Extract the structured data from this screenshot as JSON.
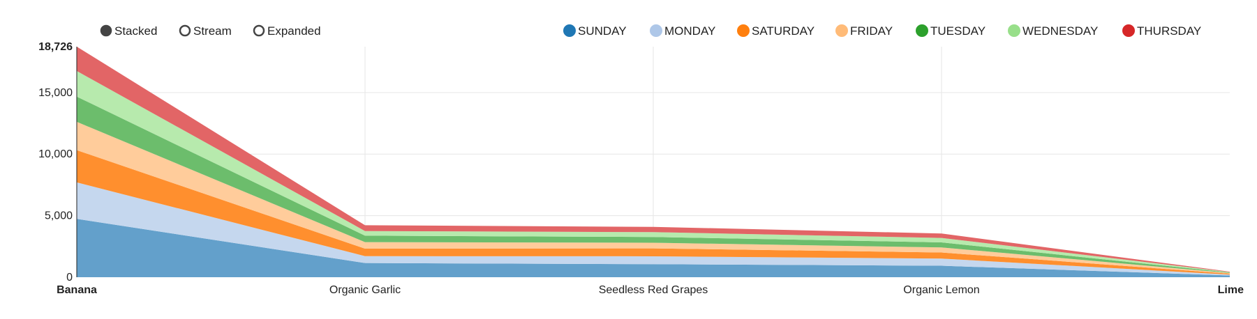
{
  "controls": {
    "options": [
      {
        "label": "Stacked",
        "selected": true
      },
      {
        "label": "Stream",
        "selected": false
      },
      {
        "label": "Expanded",
        "selected": false
      }
    ]
  },
  "chart_data": {
    "type": "area",
    "stacked": true,
    "categories": [
      "Banana",
      "Organic Garlic",
      "Seedless Red Grapes",
      "Organic Lemon",
      "Lime"
    ],
    "x_tick_labels": [
      "Banana",
      "Organic Garlic",
      "Seedless Red Grapes",
      "Organic Lemon",
      "Lime"
    ],
    "x_edge_labels_bold": true,
    "y_ticks": [
      "0",
      "5,000",
      "10,000",
      "15,000"
    ],
    "y_max_label": "18,726",
    "ylim": [
      0,
      18726
    ],
    "grid": true,
    "legend_position": "top-right",
    "series": [
      {
        "name": "SUNDAY",
        "color": "#1f77b4",
        "fill": "#63a0cb",
        "values": [
          4740,
          1150,
          1060,
          930,
          140
        ]
      },
      {
        "name": "MONDAY",
        "color": "#aec7e8",
        "fill": "#c5d7ee",
        "values": [
          2960,
          560,
          640,
          580,
          70
        ]
      },
      {
        "name": "SATURDAY",
        "color": "#ff7f0e",
        "fill": "#ff8f2e",
        "values": [
          2620,
          610,
          640,
          500,
          80
        ]
      },
      {
        "name": "FRIDAY",
        "color": "#ffbb78",
        "fill": "#ffcc9b",
        "values": [
          2300,
          530,
          460,
          410,
          50
        ]
      },
      {
        "name": "TUESDAY",
        "color": "#2ca02c",
        "fill": "#6cbd6c",
        "values": [
          2050,
          520,
          470,
          410,
          40
        ]
      },
      {
        "name": "WEDNESDAY",
        "color": "#98df8a",
        "fill": "#b7eaad",
        "values": [
          2080,
          380,
          390,
          360,
          40
        ]
      },
      {
        "name": "THURSDAY",
        "color": "#d62728",
        "fill": "#e26566",
        "values": [
          1976,
          470,
          430,
          360,
          30
        ]
      }
    ]
  }
}
